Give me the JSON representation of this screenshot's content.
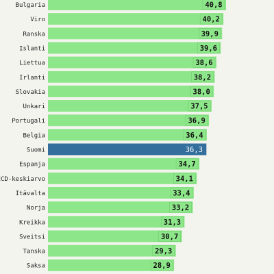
{
  "chart_data": {
    "type": "bar",
    "orientation": "horizontal",
    "categories": [
      "Bulgaria",
      "Viro",
      "Ranska",
      "Islanti",
      "Liettua",
      "Irlanti",
      "Slovakia",
      "Unkari",
      "Portugali",
      "Belgia",
      "Suomi",
      "Espanja",
      "OECD-keskiarvo",
      "Itävalta",
      "Norja",
      "Kreikka",
      "Sveitsi",
      "Tanska",
      "Saksa"
    ],
    "values": [
      40.8,
      40.2,
      39.9,
      39.6,
      38.6,
      38.2,
      38.0,
      37.5,
      36.9,
      36.4,
      36.3,
      34.7,
      34.1,
      33.4,
      33.2,
      31.3,
      30.7,
      29.3,
      28.9
    ],
    "value_labels": [
      "40,8",
      "40,2",
      "39,9",
      "39,6",
      "38,6",
      "38,2",
      "38,0",
      "37,5",
      "36,9",
      "36,4",
      "36,3",
      "34,7",
      "34,1",
      "33,4",
      "33,2",
      "31,3",
      "30,7",
      "29,3",
      "28,9"
    ],
    "highlight": "Suomi",
    "colors": {
      "bar": "#8ee68a",
      "highlight": "#336e9c",
      "label_box": "#8ee68a",
      "background": "#f4f4ef"
    },
    "xlim": [
      0,
      40.8
    ],
    "grid": false,
    "legend": "none"
  }
}
